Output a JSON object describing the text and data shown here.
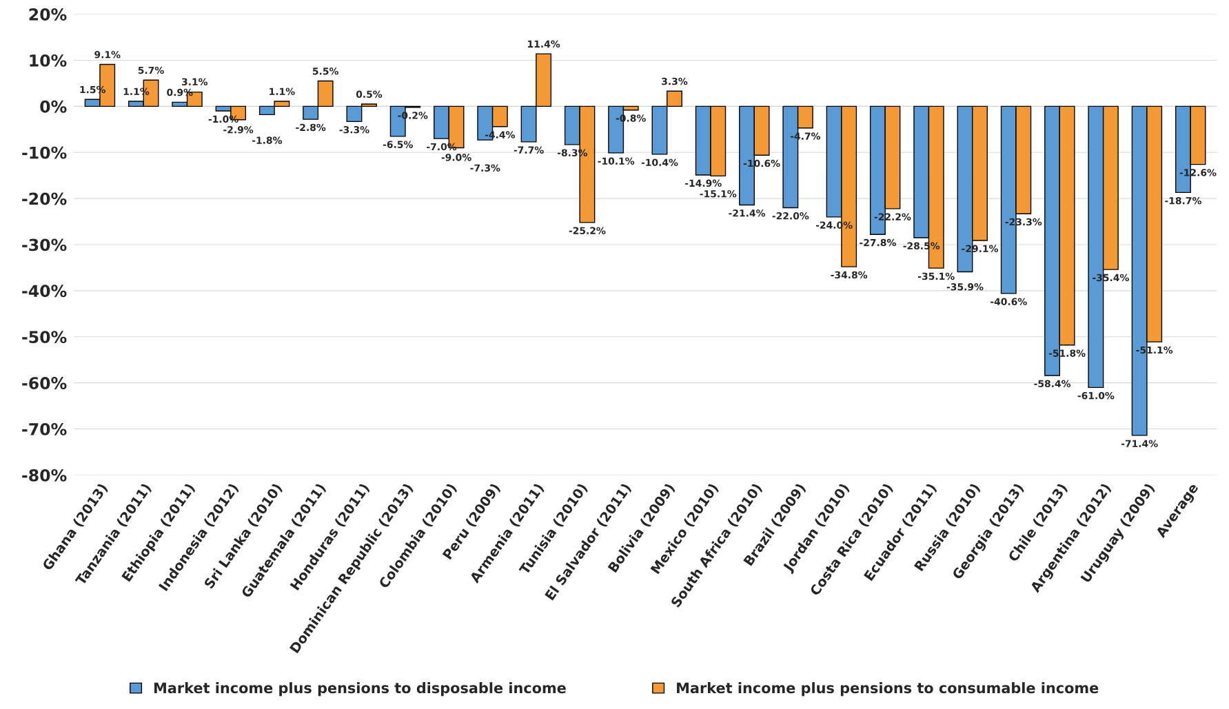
{
  "chart_data": {
    "type": "bar",
    "categories": [
      "Ghana (2013)",
      "Tanzania (2011)",
      "Ethiopia (2011)",
      "Indonesia (2012)",
      "Sri Lanka (2010)",
      "Guatemala (2011)",
      "Honduras (2011)",
      "Dominican Republic (2013)",
      "Colombia (2010)",
      "Peru (2009)",
      "Armenia (2011)",
      "Tunisia (2010)",
      "El Salvador (2011)",
      "Bolivia (2009)",
      "Mexico (2010)",
      "South Africa (2010)",
      "Brazil (2009)",
      "Jordan (2010)",
      "Costa Rica (2010)",
      "Ecuador (2011)",
      "Russia (2010)",
      "Georgia (2013)",
      "Chile (2013)",
      "Argentina (2012)",
      "Uruguay (2009)",
      "Average"
    ],
    "series": [
      {
        "name": "Market income plus pensions to disposable income",
        "color": "#5b9bd5",
        "values": [
          1.5,
          1.1,
          0.9,
          -1.0,
          -1.8,
          -2.8,
          -3.3,
          -6.5,
          -7.0,
          -7.3,
          -7.7,
          -8.3,
          -10.1,
          -10.4,
          -14.9,
          -21.4,
          -22.0,
          -24.0,
          -27.8,
          -28.5,
          -35.9,
          -40.6,
          -58.4,
          -61.0,
          -71.4,
          -18.7
        ],
        "value_labels": [
          "1.5%",
          "1.1%",
          "0.9%",
          "-1.0%",
          "-1.8%",
          "-2.8%",
          "-3.3%",
          "-6.5%",
          "-7.0%",
          "-7.3%",
          "-7.7%",
          "-8.3%",
          "-10.1%",
          "-10.4%",
          "-14.9%",
          "-21.4%",
          "-22.0%",
          "-24.0%",
          "-27.8%",
          "-28.5%",
          "-35.9%",
          "-40.6%",
          "-58.4%",
          "-61.0%",
          "-71.4%",
          "-18.7%"
        ]
      },
      {
        "name": "Market income plus pensions to consumable income",
        "color": "#f39a36",
        "values": [
          9.1,
          5.7,
          3.1,
          -2.9,
          1.1,
          5.5,
          0.5,
          -0.2,
          -9.0,
          -4.4,
          11.4,
          -25.2,
          -0.8,
          3.3,
          -15.1,
          -10.6,
          -4.7,
          -34.8,
          -22.2,
          -35.1,
          -29.1,
          -23.3,
          -51.8,
          -35.4,
          -51.1,
          -12.6
        ],
        "value_labels": [
          "9.1%",
          "5.7%",
          "3.1%",
          "-2.9%",
          "1.1%",
          "5.5%",
          "0.5%",
          "-0.2%",
          "-9.0%",
          "-4.4%",
          "11.4%",
          "-25.2%",
          "-0.8%",
          "3.3%",
          "-15.1%",
          "-10.6%",
          "-4.7%",
          "-34.8%",
          "-22.2%",
          "-35.1%",
          "-29.1%",
          "-23.3%",
          "-51.8%",
          "-35.4%",
          "-51.1%",
          "-12.6%"
        ]
      }
    ],
    "ylim": [
      -80,
      20
    ],
    "yticks": [
      {
        "value": -80,
        "label": "-80%"
      },
      {
        "value": -70,
        "label": "-70%"
      },
      {
        "value": -60,
        "label": "-60%"
      },
      {
        "value": -50,
        "label": "-50%"
      },
      {
        "value": -40,
        "label": "-40%"
      },
      {
        "value": -30,
        "label": "-30%"
      },
      {
        "value": -20,
        "label": "-20%"
      },
      {
        "value": -10,
        "label": "-10%"
      },
      {
        "value": 0,
        "label": "0%"
      },
      {
        "value": 10,
        "label": "10%"
      },
      {
        "value": 20,
        "label": "20%"
      }
    ],
    "grid": "y",
    "legend": "bottom"
  }
}
